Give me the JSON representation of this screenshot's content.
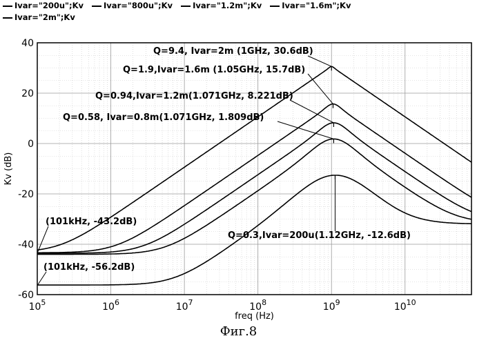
{
  "chart_data": {
    "type": "line",
    "xlabel": "freq (Hz)",
    "ylabel": "Kv (dB)",
    "x_scale": "log",
    "xlim": [
      100000,
      80000000000
    ],
    "ylim": [
      -60,
      40
    ],
    "grid": true,
    "legend_position": "top",
    "x_ticks": [
      100000,
      1000000,
      10000000,
      100000000,
      1000000000,
      10000000000
    ],
    "y_ticks": [
      -60,
      -40,
      -20,
      0,
      20,
      40
    ],
    "series": [
      {
        "name": "Ivar=\"200u\";Kv",
        "peak_x": 1120000000,
        "peak_y": -12.6,
        "low_y": -56.2,
        "high_y": -32.0,
        "knee": 2,
        "q": 0.3
      },
      {
        "name": "Ivar=\"800u\";Kv",
        "peak_x": 1071000000,
        "peak_y": 1.809,
        "low_y": -44.0,
        "high_y": -31.5,
        "knee": 1.6,
        "q": 0.58
      },
      {
        "name": "Ivar=\"1.2m\";Kv",
        "peak_x": 1071000000,
        "peak_y": 8.221,
        "low_y": -43.6,
        "high_y": -31.0,
        "knee": 1.5,
        "q": 0.94
      },
      {
        "name": "Ivar=\"1.6m\";Kv",
        "peak_x": 1050000000,
        "peak_y": 15.7,
        "low_y": -43.4,
        "high_y": -30.5,
        "knee": 1.45,
        "q": 1.9
      },
      {
        "name": "Ivar=\"2m\";Kv",
        "peak_x": 1000000000,
        "peak_y": 30.6,
        "low_y": -43.2,
        "high_y": -30.0,
        "knee": 1.4,
        "q": 9.4
      }
    ],
    "annotations": [
      {
        "text": "Q=9.4, Ivar=2m (1GHz, 30.6dB)",
        "x": 1000000000,
        "y": 30.6
      },
      {
        "text": "Q=1.9,Ivar=1.6m (1.05GHz, 15.7dB)",
        "x": 1050000000,
        "y": 15.7
      },
      {
        "text": "Q=0.94,Ivar=1.2m(1.071GHz, 8.221dB)",
        "x": 1071000000,
        "y": 8.221
      },
      {
        "text": "Q=0.58, Ivar=0.8m(1.071GHz, 1.809dB)",
        "x": 1071000000,
        "y": 1.809
      },
      {
        "text": "Q=0.3,Ivar=200u(1.12GHz, -12.6dB)",
        "x": 1120000000,
        "y": -12.6
      },
      {
        "text": "(101kHz, -43.2dB)",
        "x": 101000,
        "y": -43.2
      },
      {
        "text": "(101kHz, -56.2dB)",
        "x": 101000,
        "y": -56.2
      }
    ]
  },
  "caption": "Фиг.8"
}
